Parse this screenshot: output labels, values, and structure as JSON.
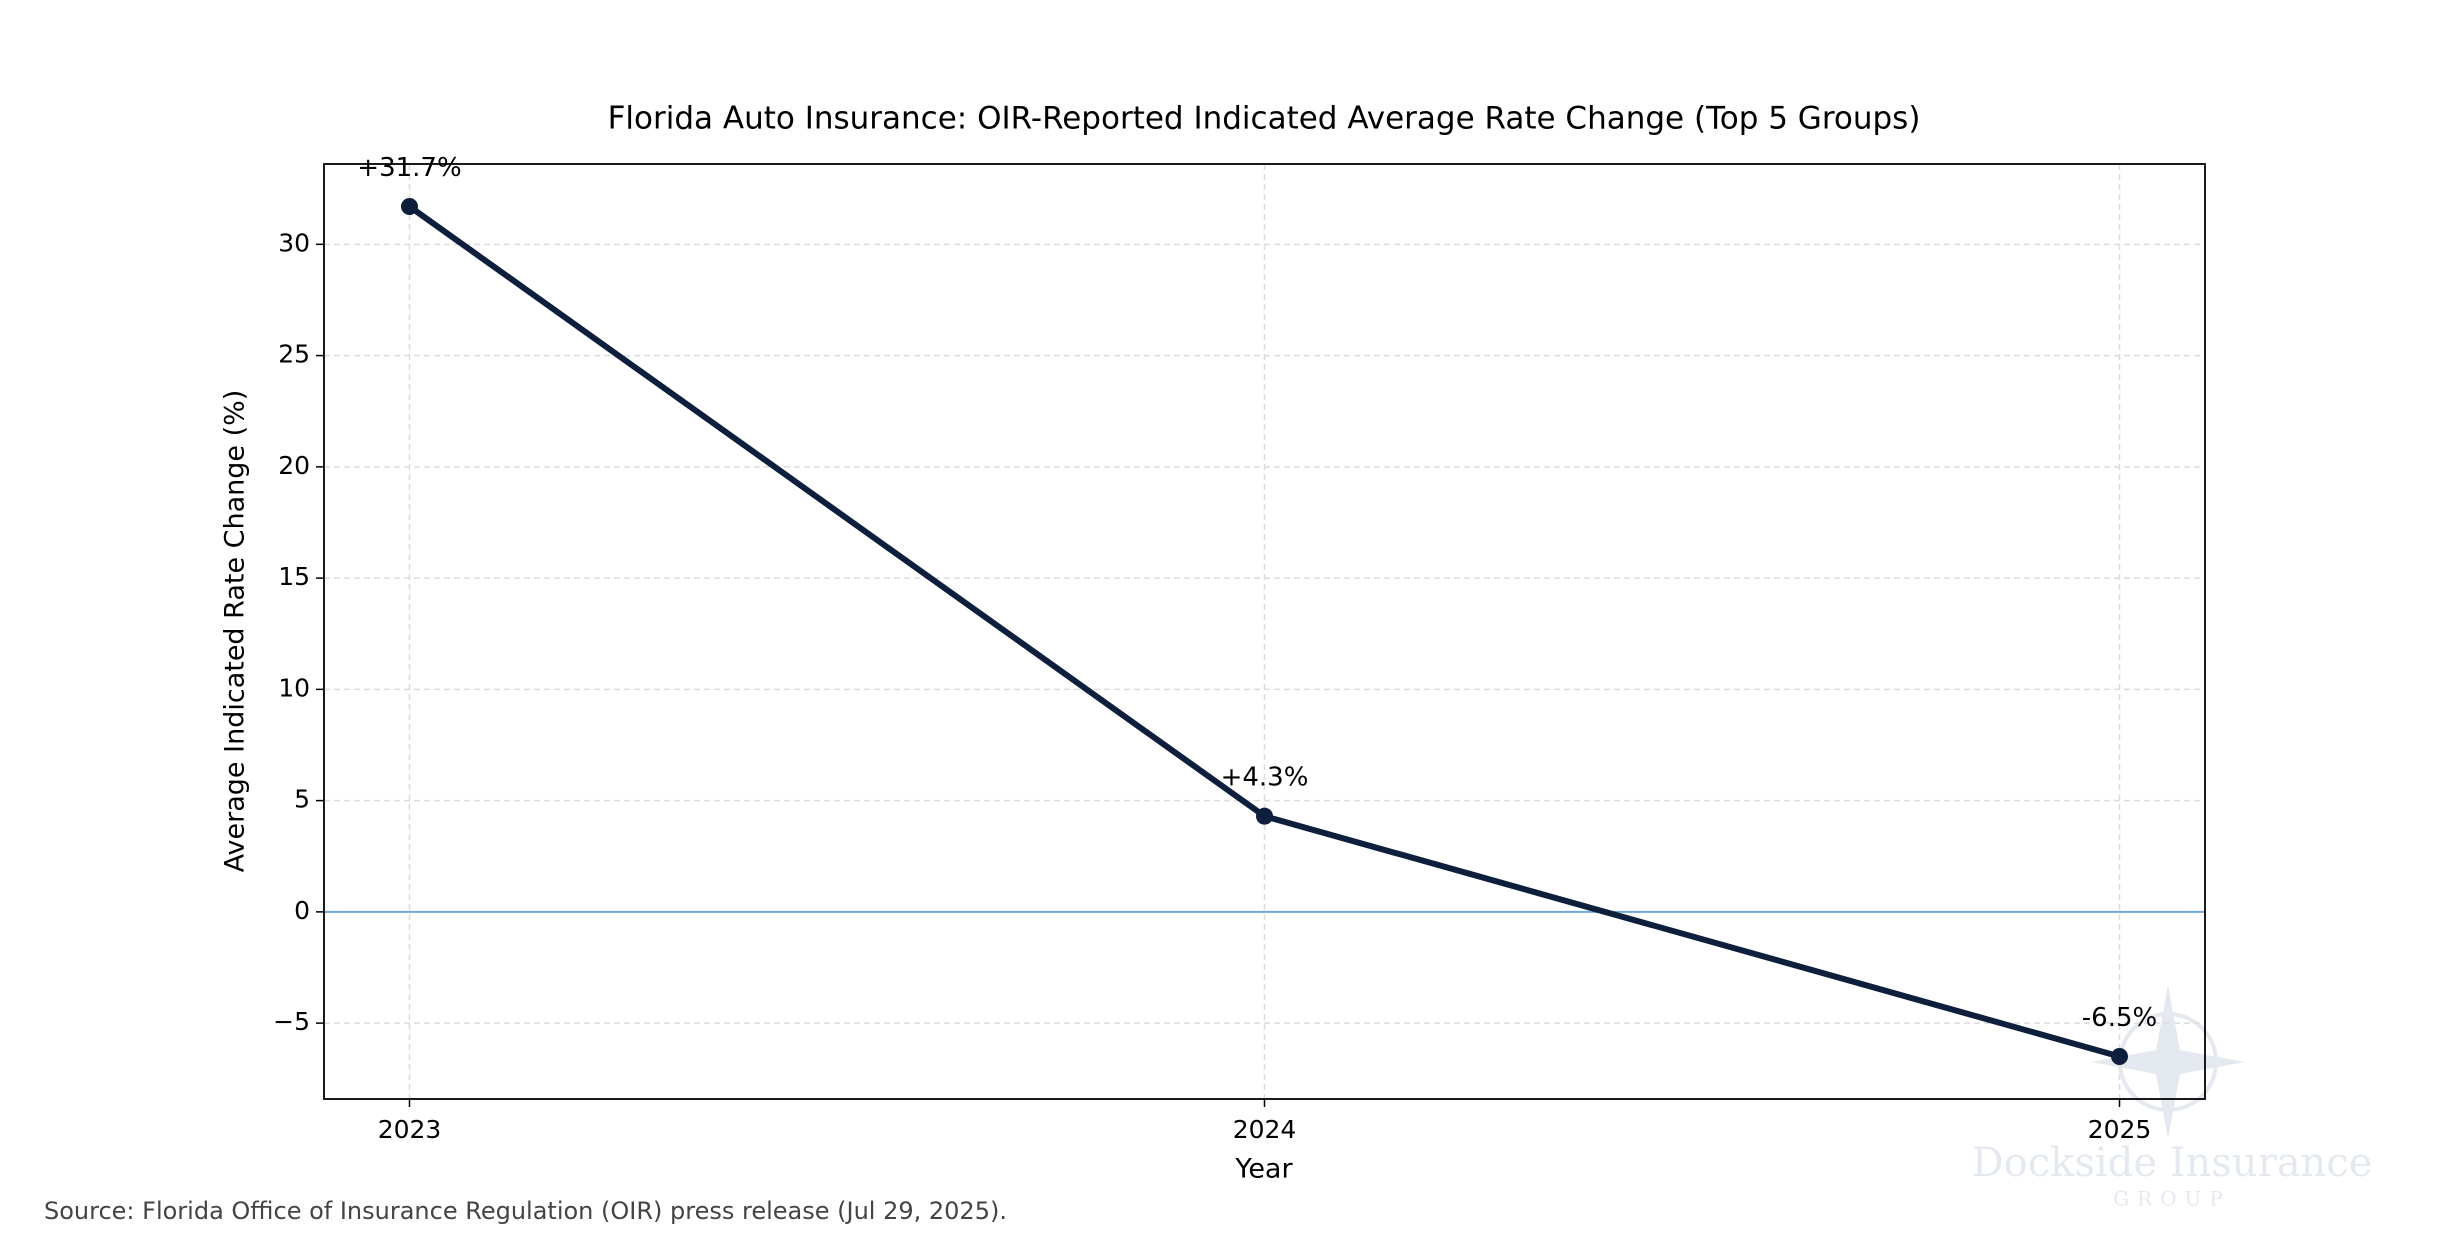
{
  "chart_data": {
    "type": "line",
    "title": "Florida Auto Insurance: OIR-Reported Indicated Average Rate Change (Top 5 Groups)",
    "x_label": "Year",
    "y_label": "Average Indicated Rate Change (%)",
    "x": [
      2023,
      2024,
      2025
    ],
    "series": [
      {
        "name": "Average Indicated Rate Change",
        "color": "#0d1f3c",
        "values": [
          31.7,
          4.3,
          -6.5
        ],
        "value_labels": [
          "+31.7%",
          "+4.3%",
          "-6.5%"
        ]
      }
    ],
    "xlim": [
      2022.9,
      2025.1
    ],
    "xticks": [
      2023,
      2024,
      2025
    ],
    "ylim": [
      -8.41,
      33.61
    ],
    "yticks": [
      {
        "value": -5,
        "label": "−5"
      },
      0,
      5,
      10,
      15,
      20,
      25,
      30
    ],
    "grid": true,
    "reference_line": {
      "value": 0,
      "color": "#6fa8dc"
    },
    "source": "Source: Florida Office of Insurance Regulation (OIR) press release (Jul 29, 2025).",
    "watermark": [
      "Dockside Insurance",
      "GROUP"
    ]
  }
}
